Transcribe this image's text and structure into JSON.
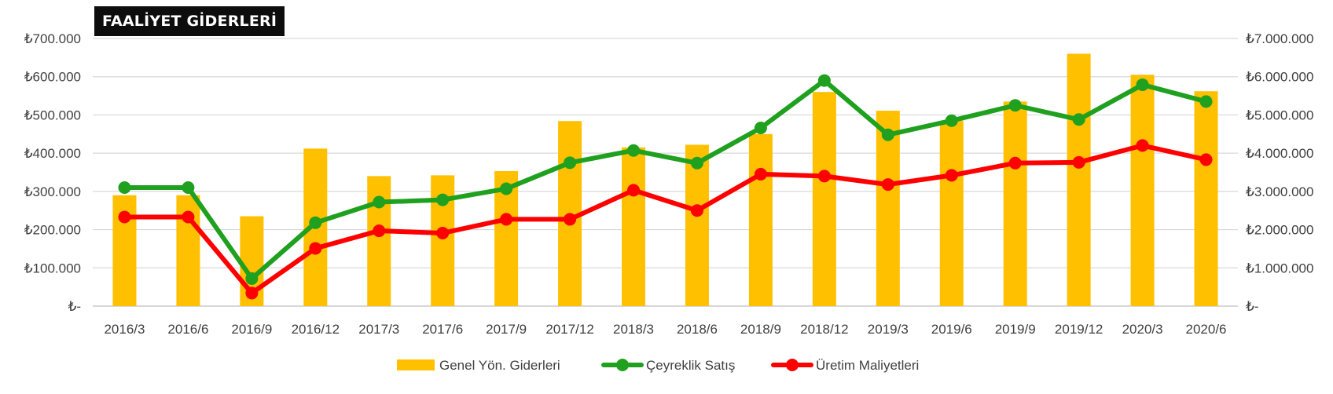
{
  "chart_data": {
    "type": "bar",
    "title": "FAALİYET GİDERLERİ",
    "categories": [
      "2016/3",
      "2016/6",
      "2016/9",
      "2016/12",
      "2017/3",
      "2017/6",
      "2017/9",
      "2017/12",
      "2018/3",
      "2018/6",
      "2018/9",
      "2018/12",
      "2019/3",
      "2019/6",
      "2019/9",
      "2019/12",
      "2020/3",
      "2020/6"
    ],
    "left_axis": {
      "ylim": [
        0,
        700000
      ],
      "ticks": [
        "₺-",
        "₺100.000",
        "₺200.000",
        "₺300.000",
        "₺400.000",
        "₺500.000",
        "₺600.000",
        "₺700.000"
      ]
    },
    "right_axis": {
      "ylim": [
        0,
        7000000
      ],
      "ticks": [
        "₺-",
        "₺1.000.000",
        "₺2.000.000",
        "₺3.000.000",
        "₺4.000.000",
        "₺5.000.000",
        "₺6.000.000",
        "₺7.000.000"
      ]
    },
    "series": [
      {
        "name": "Genel Yön. Giderleri",
        "type": "bar",
        "axis": "left",
        "color": "#FFC000",
        "values": [
          290000,
          290000,
          235000,
          412000,
          340000,
          342000,
          353000,
          484000,
          415000,
          422000,
          450000,
          560000,
          511000,
          485000,
          535000,
          660000,
          605000,
          562000
        ]
      },
      {
        "name": "Çeyreklik Satış",
        "type": "line",
        "axis": "right",
        "color": "#1FA01F",
        "values": [
          3100000,
          3100000,
          720000,
          2180000,
          2720000,
          2780000,
          3070000,
          3750000,
          4070000,
          3740000,
          4660000,
          5900000,
          4480000,
          4850000,
          5250000,
          4880000,
          5790000,
          5350000
        ]
      },
      {
        "name": "Üretim Maliyetleri",
        "type": "line",
        "axis": "right",
        "color": "#FF0000",
        "values": [
          2330000,
          2330000,
          340000,
          1510000,
          1970000,
          1910000,
          2270000,
          2270000,
          3030000,
          2500000,
          3450000,
          3400000,
          3180000,
          3420000,
          3740000,
          3760000,
          4200000,
          3830000
        ]
      }
    ],
    "grid": true,
    "legend": "bottom-center"
  }
}
